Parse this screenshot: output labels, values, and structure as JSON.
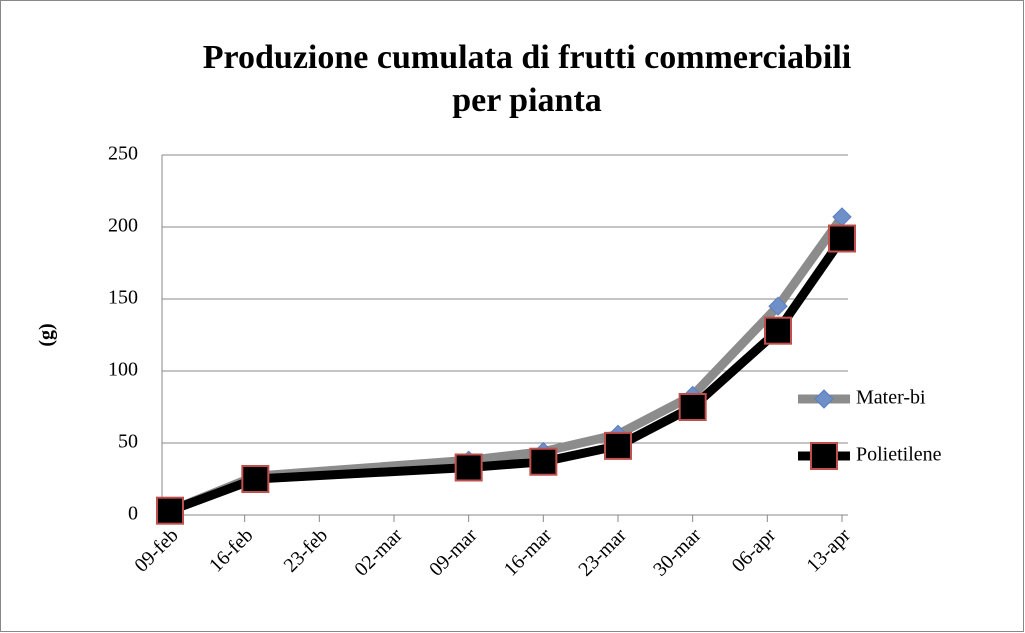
{
  "chart_data": {
    "type": "line",
    "title": [
      "Produzione cumulata di frutti commerciabili",
      "per pianta"
    ],
    "y_label": "(g)",
    "x": [
      0,
      8,
      28,
      35,
      42,
      49,
      57,
      63
    ],
    "xlim": [
      0,
      63
    ],
    "xticks": [
      {
        "value": 0,
        "label": "09-feb"
      },
      {
        "value": 7,
        "label": "16-feb"
      },
      {
        "value": 14,
        "label": "23-feb"
      },
      {
        "value": 21,
        "label": "02-mar"
      },
      {
        "value": 28,
        "label": "09-mar"
      },
      {
        "value": 35,
        "label": "16-mar"
      },
      {
        "value": 42,
        "label": "23-mar"
      },
      {
        "value": 49,
        "label": "30-mar"
      },
      {
        "value": 56,
        "label": "06-apr"
      },
      {
        "value": 63,
        "label": "13-apr"
      }
    ],
    "ylim": [
      0,
      250
    ],
    "yticks": [
      0,
      50,
      100,
      150,
      200,
      250
    ],
    "grid": true,
    "legend": "right",
    "series": [
      {
        "name": "Mater-bi",
        "color": "#8c8c8c",
        "marker": "diamond",
        "marker_color": "#6f8fc8",
        "values": [
          3,
          27,
          38,
          44,
          56,
          83,
          145,
          207
        ]
      },
      {
        "name": "Polietilene",
        "color": "#000000",
        "marker": "square",
        "marker_color": "#c0504d",
        "values": [
          3,
          25,
          33,
          37,
          48,
          75,
          128,
          192
        ]
      }
    ]
  }
}
